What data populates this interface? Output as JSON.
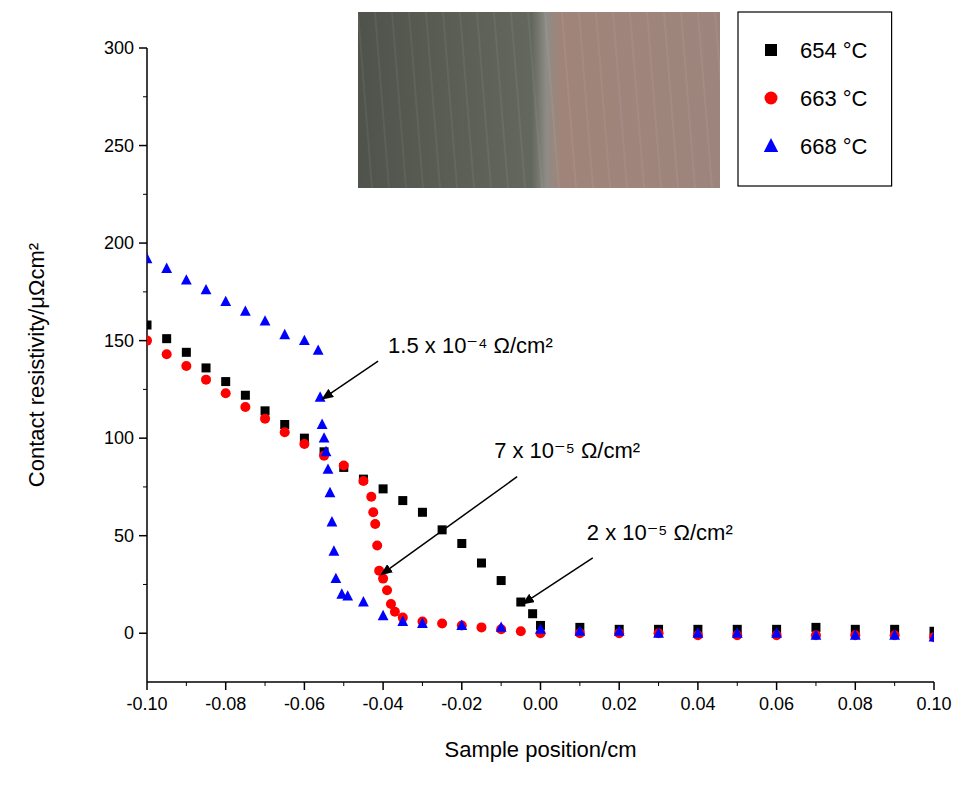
{
  "chart_data": {
    "type": "scatter",
    "x_label": "Sample position/cm",
    "y_label": "Contact resistivity/μΩcm²",
    "xlim": [
      -0.1,
      0.1
    ],
    "ylim": [
      -25,
      300
    ],
    "xticks": [
      {
        "value": -0.1,
        "label": "-0.10"
      },
      {
        "value": -0.08,
        "label": "-0.08"
      },
      {
        "value": -0.06,
        "label": "-0.06"
      },
      {
        "value": -0.04,
        "label": "-0.04"
      },
      {
        "value": -0.02,
        "label": "-0.02"
      },
      {
        "value": 0,
        "label": "0.00"
      },
      {
        "value": 0.02,
        "label": "0.02"
      },
      {
        "value": 0.04,
        "label": "0.04"
      },
      {
        "value": 0.06,
        "label": "0.06"
      },
      {
        "value": 0.08,
        "label": "0.08"
      },
      {
        "value": 0.1,
        "label": "0.10"
      }
    ],
    "yticks": [
      0,
      50,
      100,
      150,
      200,
      250,
      300
    ],
    "grid": false,
    "legend": "top-right",
    "series": [
      {
        "name": "654 °C",
        "color": "#000000",
        "marker": "square",
        "x": [
          -0.1,
          -0.095,
          -0.09,
          -0.085,
          -0.08,
          -0.075,
          -0.07,
          -0.065,
          -0.06,
          -0.055,
          -0.05,
          -0.045,
          -0.04,
          -0.035,
          -0.03,
          -0.025,
          -0.02,
          -0.015,
          -0.01,
          -0.005,
          -0.002,
          0,
          0.01,
          0.02,
          0.03,
          0.04,
          0.05,
          0.06,
          0.07,
          0.08,
          0.09,
          0.1
        ],
        "values": [
          158,
          151,
          144,
          136,
          129,
          122,
          114,
          107,
          100,
          93,
          85,
          79,
          74,
          68,
          62,
          53,
          46,
          36,
          27,
          16,
          10,
          4,
          3,
          2,
          2,
          2,
          2,
          2,
          3,
          2,
          2,
          1
        ]
      },
      {
        "name": "663 °C",
        "color": "#ff0000",
        "marker": "circle",
        "x": [
          -0.1,
          -0.095,
          -0.09,
          -0.085,
          -0.08,
          -0.075,
          -0.07,
          -0.065,
          -0.06,
          -0.055,
          -0.05,
          -0.045,
          -0.043,
          -0.0425,
          -0.042,
          -0.0415,
          -0.041,
          -0.04,
          -0.039,
          -0.038,
          -0.037,
          -0.035,
          -0.03,
          -0.025,
          -0.02,
          -0.015,
          -0.01,
          -0.005,
          0,
          0.01,
          0.02,
          0.03,
          0.04,
          0.05,
          0.06,
          0.07,
          0.08,
          0.09,
          0.1
        ],
        "values": [
          150,
          143,
          137,
          130,
          123,
          116,
          110,
          103,
          97,
          91,
          86,
          78,
          70,
          62,
          56,
          45,
          32,
          28,
          22,
          15,
          11,
          8,
          6,
          5,
          4,
          3,
          2,
          1,
          0,
          0,
          0,
          0,
          -1,
          -1,
          -1,
          -1,
          -1,
          -1,
          -2
        ]
      },
      {
        "name": "668 °C",
        "color": "#0000ff",
        "marker": "triangle",
        "x": [
          -0.1,
          -0.095,
          -0.09,
          -0.085,
          -0.08,
          -0.075,
          -0.07,
          -0.065,
          -0.06,
          -0.0565,
          -0.056,
          -0.0555,
          -0.055,
          -0.0545,
          -0.054,
          -0.0535,
          -0.053,
          -0.0525,
          -0.052,
          -0.0505,
          -0.049,
          -0.045,
          -0.04,
          -0.035,
          -0.03,
          -0.02,
          -0.01,
          0,
          0.01,
          0.02,
          0.03,
          0.04,
          0.05,
          0.06,
          0.07,
          0.08,
          0.09,
          0.1
        ],
        "values": [
          192,
          187,
          181,
          176,
          170,
          165,
          160,
          153,
          150,
          145,
          121,
          107,
          100,
          93,
          84,
          72,
          57,
          42,
          28,
          20,
          19,
          16,
          9,
          6,
          5,
          4,
          3,
          2,
          1,
          1,
          0,
          0,
          0,
          0,
          -1,
          -1,
          -1,
          -2
        ]
      }
    ],
    "annotations": [
      {
        "text": "1.5 x 10⁻⁴ Ω/cm²",
        "x": -0.0555,
        "y": 120
      },
      {
        "text": "7 x 10⁻⁵ Ω/cm²",
        "x": -0.0405,
        "y": 30
      },
      {
        "text": "2 x 10⁻⁵ Ω/cm²",
        "x": -0.0045,
        "y": 15
      }
    ]
  }
}
